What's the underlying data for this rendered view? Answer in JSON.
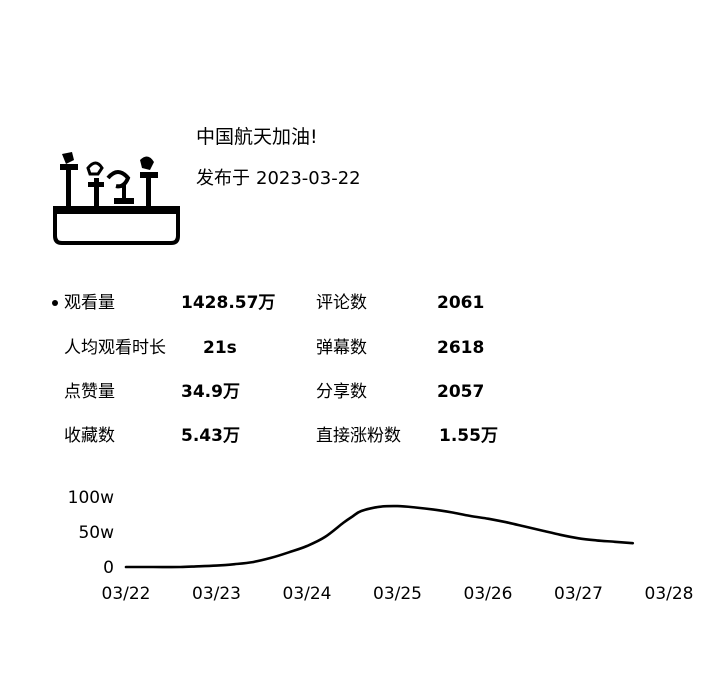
{
  "post": {
    "title": "中国航天加油!",
    "published_label": "发布于",
    "published_date": "2023-03-22"
  },
  "stats": {
    "views": {
      "label": "观看量",
      "value": "1428.57万"
    },
    "comments": {
      "label": "评论数",
      "value": "2061"
    },
    "avg_watch": {
      "label": "人均观看时长",
      "value": "21s"
    },
    "danmaku": {
      "label": "弹幕数",
      "value": "2618"
    },
    "likes": {
      "label": "点赞量",
      "value": "34.9万"
    },
    "shares": {
      "label": "分享数",
      "value": "2057"
    },
    "favorites": {
      "label": "收藏数",
      "value": "5.43万"
    },
    "followers_gained": {
      "label": "直接涨粉数",
      "value": "1.55万"
    }
  },
  "chart_data": {
    "type": "line",
    "title": "",
    "xlabel": "",
    "ylabel": "",
    "y_ticks": [
      "0",
      "50w",
      "100w"
    ],
    "y_tick_values": [
      0,
      50,
      100
    ],
    "ylim": [
      0,
      110
    ],
    "categories": [
      "03/22",
      "03/23",
      "03/24",
      "03/25",
      "03/26",
      "03/27",
      "03/28"
    ],
    "grid": false,
    "legend": "none",
    "series": [
      {
        "x": [
          0,
          0.3,
          0.6,
          0.8,
          1.0,
          1.2,
          1.4,
          1.6,
          1.8,
          2.0,
          2.2,
          2.4,
          2.5,
          2.6,
          2.8,
          3.0,
          3.2,
          3.4,
          3.6,
          3.8,
          4.0,
          4.2,
          4.4,
          4.6,
          4.8,
          5.0,
          5.2,
          5.4,
          5.6
        ],
        "values": [
          0,
          0,
          0,
          1,
          2,
          4,
          7,
          13,
          21,
          30,
          43,
          63,
          72,
          80,
          86,
          87,
          85,
          82,
          78,
          73,
          69,
          64,
          58,
          52,
          46,
          41,
          38,
          36,
          34
        ]
      }
    ],
    "colors": {
      "line": "#000000",
      "text": "#000000"
    }
  }
}
